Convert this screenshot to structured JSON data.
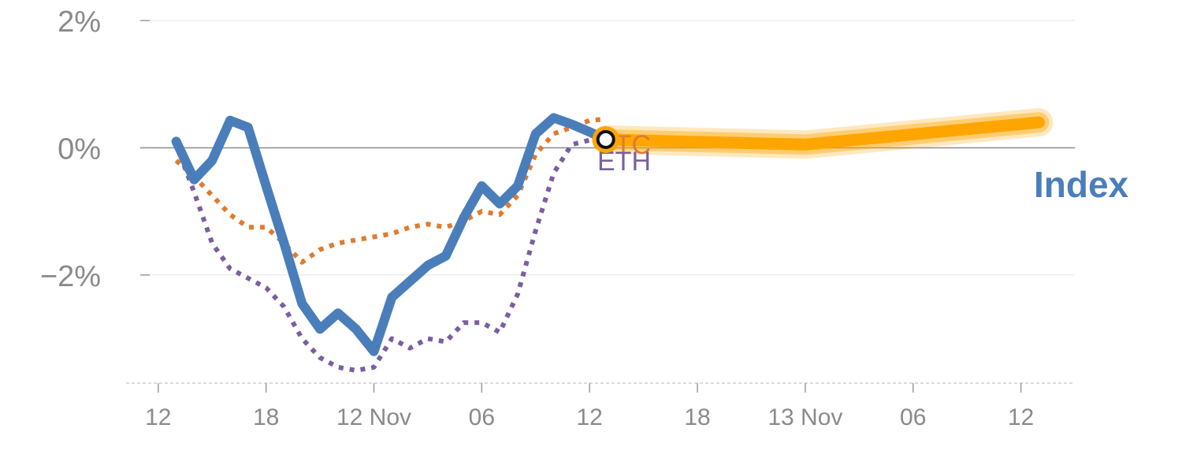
{
  "chart_data": {
    "type": "line",
    "title": "",
    "xlabel": "",
    "ylabel": "",
    "ylim": [
      -3.7,
      2.1
    ],
    "y_ticks": [
      {
        "value": 2,
        "label": "2%"
      },
      {
        "value": 0,
        "label": "0%"
      },
      {
        "value": -2,
        "label": "−2%"
      }
    ],
    "x_ticks": [
      {
        "hour": 0,
        "label": "12"
      },
      {
        "hour": 6,
        "label": "18"
      },
      {
        "hour": 12,
        "label": "12 Nov"
      },
      {
        "hour": 18,
        "label": "06"
      },
      {
        "hour": 24,
        "label": "12"
      },
      {
        "hour": 30,
        "label": "18"
      },
      {
        "hour": 36,
        "label": "13 Nov"
      },
      {
        "hour": 42,
        "label": "06"
      },
      {
        "hour": 48,
        "label": "12"
      }
    ],
    "xlim": [
      -1,
      51
    ],
    "series": [
      {
        "name": "Index",
        "color": "#4a7ebb",
        "style": "solid",
        "x": [
          1,
          2,
          3,
          4,
          5,
          6,
          7,
          8,
          9,
          10,
          11,
          12,
          13,
          14,
          15,
          16,
          17,
          18,
          19,
          20,
          21,
          22,
          23,
          24,
          24.9
        ],
        "y": [
          0.1,
          -0.5,
          -0.2,
          0.43,
          0.32,
          -0.6,
          -1.5,
          -2.45,
          -2.85,
          -2.6,
          -2.85,
          -3.2,
          -2.35,
          -2.1,
          -1.85,
          -1.7,
          -1.1,
          -0.6,
          -0.88,
          -0.6,
          0.22,
          0.47,
          0.37,
          0.25,
          0.13
        ]
      },
      {
        "name": "BTC",
        "color": "#e07b2e",
        "style": "dotted",
        "x": [
          1,
          2,
          3,
          4,
          5,
          6,
          7,
          8,
          9,
          10,
          11,
          12,
          13,
          14,
          15,
          16,
          17,
          18,
          19,
          20,
          21,
          22,
          23,
          24,
          24.9
        ],
        "y": [
          -0.2,
          -0.45,
          -0.75,
          -1.05,
          -1.25,
          -1.25,
          -1.5,
          -1.8,
          -1.6,
          -1.5,
          -1.45,
          -1.4,
          -1.35,
          -1.25,
          -1.2,
          -1.25,
          -1.15,
          -1.0,
          -1.05,
          -0.75,
          -0.1,
          0.22,
          0.32,
          0.43,
          0.45
        ]
      },
      {
        "name": "ETH",
        "color": "#7a5fa0",
        "style": "dotted",
        "x": [
          1,
          2,
          3,
          4,
          5,
          6,
          7,
          8,
          9,
          10,
          11,
          12,
          13,
          14,
          15,
          16,
          17,
          18,
          19,
          20,
          21,
          22,
          23,
          24,
          24.9
        ],
        "y": [
          0.05,
          -0.7,
          -1.5,
          -1.9,
          -2.05,
          -2.2,
          -2.5,
          -3.0,
          -3.3,
          -3.45,
          -3.5,
          -3.45,
          -3.0,
          -3.15,
          -3.0,
          -3.05,
          -2.75,
          -2.75,
          -2.9,
          -2.3,
          -1.3,
          -0.4,
          0.05,
          0.12,
          0.12
        ]
      },
      {
        "name": "",
        "color": "#ffa500",
        "style": "band",
        "x": [
          24.9,
          36,
          49
        ],
        "y": [
          0.13,
          0.05,
          0.4
        ]
      }
    ],
    "marker": {
      "x": 24.9,
      "y": 0.13
    },
    "grid": true,
    "legend": "direct labels at line ends"
  }
}
